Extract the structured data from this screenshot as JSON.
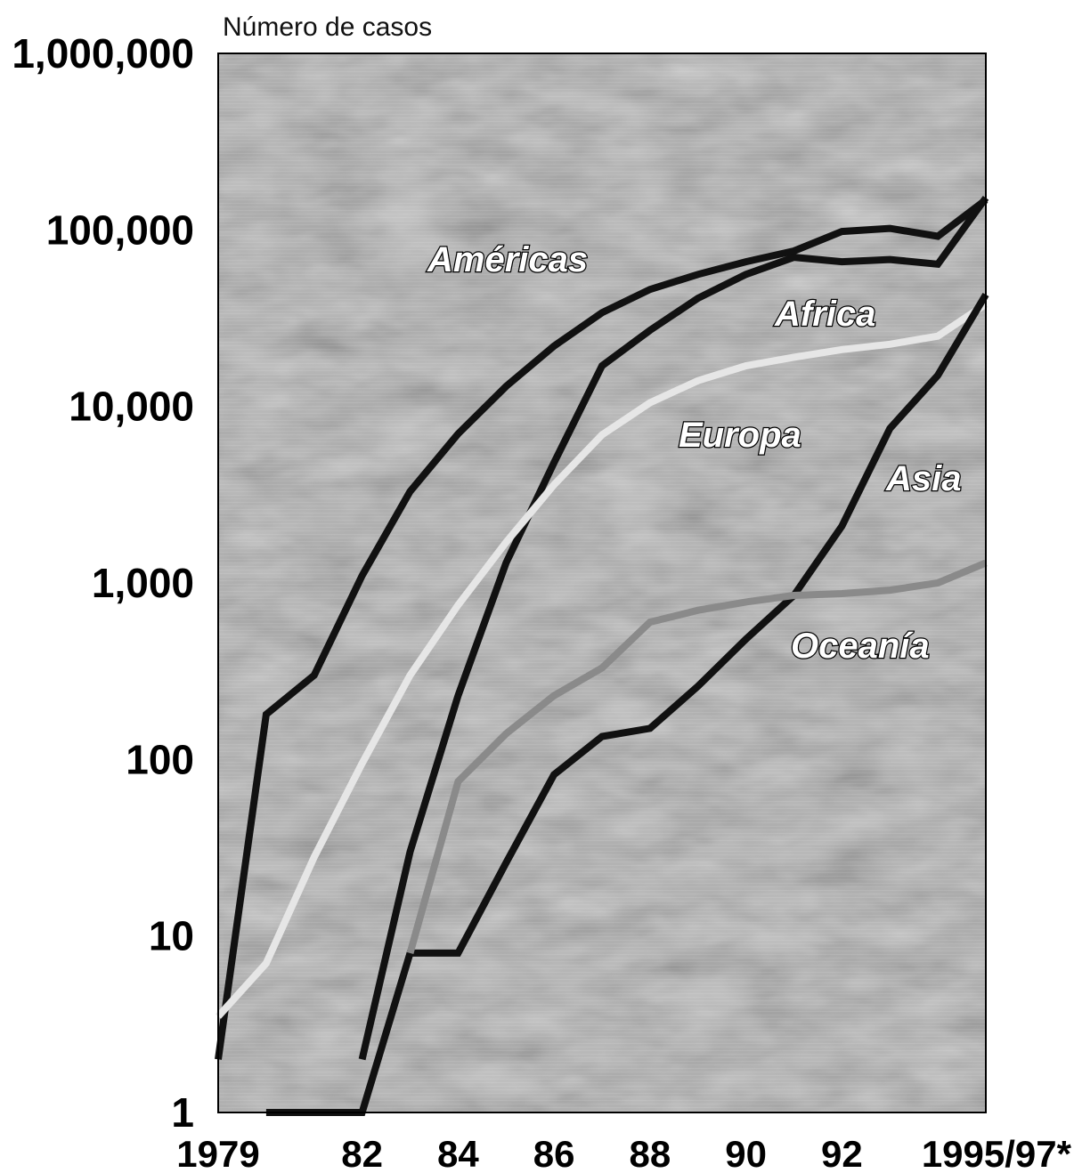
{
  "chart_data": {
    "type": "line",
    "ylabel": "Número de casos",
    "yscale": "log",
    "ylim": [
      1,
      1000000
    ],
    "yticks": [
      "1",
      "10",
      "100",
      "1,000",
      "10,000",
      "100,000",
      "1,000,000"
    ],
    "xlim": [
      1979,
      1995
    ],
    "xticks": [
      {
        "value": 1979,
        "label": "1979"
      },
      {
        "value": 1982,
        "label": "82"
      },
      {
        "value": 1984,
        "label": "84"
      },
      {
        "value": 1986,
        "label": "86"
      },
      {
        "value": 1988,
        "label": "88"
      },
      {
        "value": 1990,
        "label": "90"
      },
      {
        "value": 1992,
        "label": "92"
      },
      {
        "value": 1995,
        "label": "1995/97*"
      }
    ],
    "colors": {
      "Américas": "#111111",
      "Africa": "#111111",
      "Europa": "#e6e6e6",
      "Asia": "#111111",
      "Oceanía": "#8a8a8a",
      "background": "#a9a9a9"
    },
    "series": [
      {
        "name": "Américas",
        "color": "#111111",
        "points": [
          [
            1979,
            2
          ],
          [
            1980,
            180
          ],
          [
            1981,
            300
          ],
          [
            1982,
            1100
          ],
          [
            1983,
            3300
          ],
          [
            1984,
            7000
          ],
          [
            1985,
            13000
          ],
          [
            1986,
            22000
          ],
          [
            1987,
            34000
          ],
          [
            1988,
            46000
          ],
          [
            1989,
            56000
          ],
          [
            1990,
            66000
          ],
          [
            1991,
            76000
          ],
          [
            1992,
            98000
          ],
          [
            1993,
            102000
          ],
          [
            1994,
            92000
          ],
          [
            1995,
            148000
          ]
        ]
      },
      {
        "name": "Africa",
        "color": "#111111",
        "points": [
          [
            1982,
            2
          ],
          [
            1983,
            30
          ],
          [
            1984,
            230
          ],
          [
            1985,
            1300
          ],
          [
            1986,
            4800
          ],
          [
            1987,
            17000
          ],
          [
            1988,
            27000
          ],
          [
            1989,
            41000
          ],
          [
            1990,
            56000
          ],
          [
            1991,
            70000
          ],
          [
            1992,
            66000
          ],
          [
            1993,
            68000
          ],
          [
            1994,
            64000
          ],
          [
            1995,
            152000
          ]
        ]
      },
      {
        "name": "Europa",
        "color": "#e6e6e6",
        "points": [
          [
            1979,
            3.5
          ],
          [
            1980,
            7
          ],
          [
            1981,
            28
          ],
          [
            1982,
            95
          ],
          [
            1983,
            300
          ],
          [
            1984,
            750
          ],
          [
            1985,
            1700
          ],
          [
            1986,
            3600
          ],
          [
            1987,
            6900
          ],
          [
            1988,
            10500
          ],
          [
            1989,
            14000
          ],
          [
            1990,
            17000
          ],
          [
            1991,
            19000
          ],
          [
            1992,
            21000
          ],
          [
            1993,
            22500
          ],
          [
            1994,
            25000
          ],
          [
            1995,
            38000
          ]
        ]
      },
      {
        "name": "Asia",
        "color": "#111111",
        "points": [
          [
            1980,
            1
          ],
          [
            1981,
            1
          ],
          [
            1982,
            1
          ],
          [
            1983,
            8
          ],
          [
            1984,
            8
          ],
          [
            1985,
            26
          ],
          [
            1986,
            82
          ],
          [
            1987,
            135
          ],
          [
            1988,
            150
          ],
          [
            1989,
            260
          ],
          [
            1990,
            480
          ],
          [
            1991,
            850
          ],
          [
            1992,
            2100
          ],
          [
            1993,
            7500
          ],
          [
            1994,
            15000
          ],
          [
            1995,
            43000
          ]
        ]
      },
      {
        "name": "Oceanía",
        "color": "#8a8a8a",
        "points": [
          [
            1983,
            8
          ],
          [
            1984,
            75
          ],
          [
            1985,
            140
          ],
          [
            1986,
            230
          ],
          [
            1987,
            330
          ],
          [
            1988,
            600
          ],
          [
            1989,
            700
          ],
          [
            1990,
            780
          ],
          [
            1991,
            850
          ],
          [
            1992,
            870
          ],
          [
            1993,
            910
          ],
          [
            1994,
            1000
          ],
          [
            1995,
            1300
          ]
        ]
      }
    ],
    "annotations": [
      "Américas",
      "Africa",
      "Europa",
      "Asia",
      "Oceanía"
    ],
    "grid": false,
    "legend": "inline labels"
  }
}
